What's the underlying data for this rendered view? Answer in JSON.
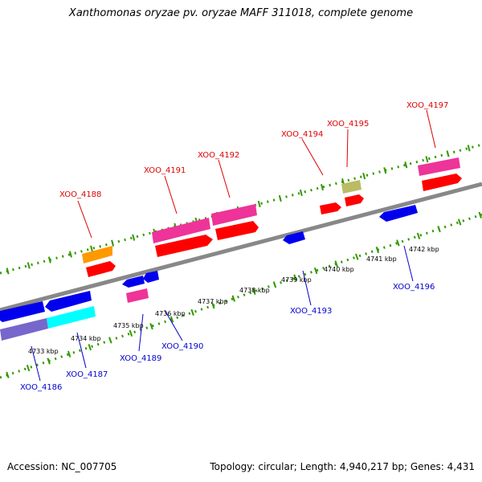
{
  "title": "Xanthomonas oryzae pv. oryzae MAFF 311018, complete genome",
  "footer": {
    "accession": "Accession: NC_007705",
    "summary": "Topology: circular; Length: 4,940,217 bp; Genes: 4,431"
  },
  "colors": {
    "axis": "#888888",
    "ticks": "#339900",
    "forward_label": "#dd0000",
    "reverse_label": "#0000cc"
  },
  "kbp_labels": [
    "4733 kbp",
    "4734 kbp",
    "4735 kbp",
    "4736 kbp",
    "4737 kbp",
    "4738 kbp",
    "4739 kbp",
    "4740 kbp",
    "4741 kbp",
    "4742 kbp"
  ],
  "forward_genes": [
    {
      "label": "XOO_4188",
      "color": "#ff0000",
      "feature_color": "#ff9900"
    },
    {
      "label": "XOO_4191",
      "color": "#ff0000",
      "feature_color": "#ee3399"
    },
    {
      "label": "XOO_4192",
      "color": "#ff0000",
      "feature_color": "#ee3399"
    },
    {
      "label": "XOO_4194",
      "color": "#ff0000",
      "feature_color": "#bbbb66"
    },
    {
      "label": "XOO_4195",
      "color": "#ff0000",
      "feature_color": "#bbbb66"
    },
    {
      "label": "XOO_4197",
      "color": "#ff0000",
      "feature_color": "#ee3399"
    }
  ],
  "reverse_genes": [
    {
      "label": "XOO_4186",
      "color": "#0000ff",
      "feature_color": "#7766cc"
    },
    {
      "label": "XOO_4187",
      "color": "#0000ff",
      "feature_color": "#00ffff"
    },
    {
      "label": "XOO_4189",
      "color": "#0000ff",
      "feature_color": "#ee3399"
    },
    {
      "label": "XOO_4190",
      "color": "#0000ff",
      "feature_color": ""
    },
    {
      "label": "XOO_4193",
      "color": "#0000ff",
      "feature_color": ""
    },
    {
      "label": "XOO_4196",
      "color": "#0000ff",
      "feature_color": ""
    }
  ]
}
